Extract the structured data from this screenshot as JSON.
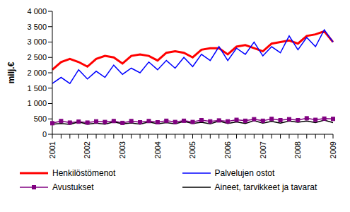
{
  "chart_data": {
    "type": "line",
    "y_label": "milj.€",
    "categories": [
      "2001",
      null,
      null,
      null,
      "2002",
      null,
      null,
      null,
      "2003",
      null,
      null,
      null,
      "2004",
      null,
      null,
      null,
      "2005",
      null,
      null,
      null,
      "2006",
      null,
      null,
      null,
      "2007",
      null,
      null,
      null,
      "2008",
      null,
      null,
      null,
      "2009"
    ],
    "series": [
      {
        "name": "Henkilöstömenot",
        "color": "#ff0000",
        "marker": "none",
        "line_style": "thick",
        "values": [
          2100,
          2350,
          2450,
          2350,
          2200,
          2450,
          2550,
          2500,
          2300,
          2550,
          2600,
          2550,
          2400,
          2650,
          2700,
          2650,
          2500,
          2750,
          2800,
          2800,
          2600,
          2850,
          2900,
          2800,
          2700,
          2950,
          3000,
          3050,
          2950,
          3200,
          3250,
          3350,
          3000
        ]
      },
      {
        "name": "Palvelujen ostot",
        "color": "#0000ff",
        "marker": "none",
        "line_style": "solid",
        "values": [
          1650,
          1850,
          1650,
          2100,
          1800,
          2050,
          1850,
          2250,
          1950,
          2150,
          2000,
          2350,
          2100,
          2400,
          2150,
          2500,
          2200,
          2600,
          2400,
          2850,
          2400,
          2800,
          2600,
          3000,
          2550,
          2850,
          2650,
          3200,
          2750,
          3150,
          2850,
          3400,
          3000
        ]
      },
      {
        "name": "Avustukset",
        "color": "#800080",
        "marker": "square",
        "line_style": "solid",
        "values": [
          360,
          430,
          380,
          410,
          380,
          420,
          400,
          430,
          370,
          430,
          390,
          430,
          390,
          440,
          400,
          440,
          400,
          460,
          420,
          450,
          420,
          470,
          440,
          490,
          440,
          500,
          460,
          490,
          460,
          520,
          470,
          510,
          500
        ]
      },
      {
        "name": "Aineet, tarvikkeet ja tavarat",
        "color": "#000000",
        "marker": "none",
        "line_style": "solid",
        "values": [
          330,
          350,
          320,
          400,
          330,
          360,
          330,
          400,
          340,
          370,
          330,
          400,
          340,
          380,
          340,
          420,
          350,
          390,
          340,
          430,
          350,
          400,
          350,
          440,
          360,
          420,
          360,
          430,
          390,
          430,
          380,
          460,
          380
        ]
      }
    ],
    "ylim": [
      0,
      4000
    ],
    "yticks": [
      0,
      500,
      {
        "value": 1000,
        "label": "1 000"
      },
      {
        "value": 1500,
        "label": "1 500"
      },
      {
        "value": 2000,
        "label": "2 000"
      },
      {
        "value": 2500,
        "label": "2 500"
      },
      {
        "value": 3000,
        "label": "3 000"
      },
      {
        "value": 3500,
        "label": "3 500"
      },
      {
        "value": 4000,
        "label": "4 000"
      }
    ],
    "grid": false,
    "legend": "bottom"
  }
}
